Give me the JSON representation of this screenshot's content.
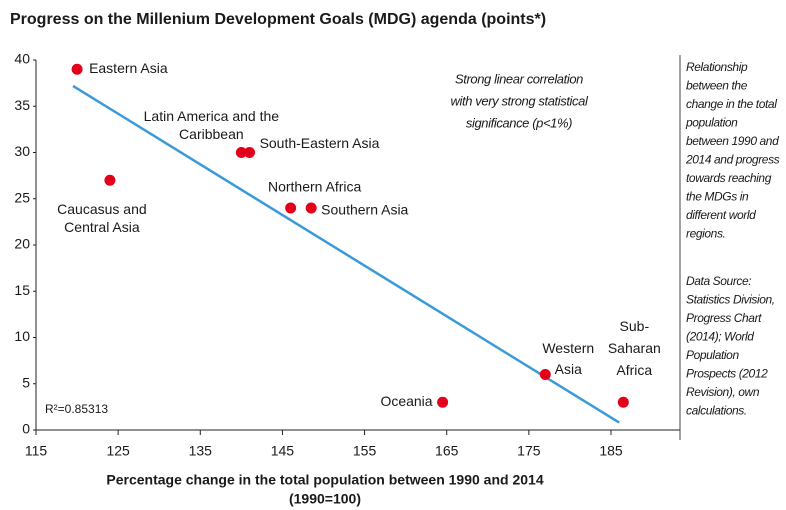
{
  "chart_data": {
    "type": "scatter",
    "title": "Progress on the Millenium Development Goals (MDG) agenda (points*)",
    "x_label": [
      "Percentage change in the total population between 1990 and 2014",
      "(1990=100)"
    ],
    "labels": [
      [
        "Eastern Asia"
      ],
      [
        "Latin America and the",
        "Caribbean"
      ],
      [
        "South-Eastern Asia"
      ],
      [
        "Caucasus and",
        "Central Asia"
      ],
      [
        "Northern Africa"
      ],
      [
        "Southern Asia"
      ],
      [
        "Oceania"
      ],
      [
        "Western",
        "Asia"
      ],
      [
        "Sub-",
        "Saharan",
        "Africa"
      ]
    ],
    "x": [
      120,
      140,
      141,
      124,
      146,
      148.5,
      164.5,
      177,
      186.5
    ],
    "values": [
      39,
      30,
      30,
      27,
      24,
      24,
      3,
      6,
      3
    ],
    "color": "#e2001a",
    "trendline": {
      "x": [
        119.5,
        186
      ],
      "y": [
        37.2,
        0.8
      ],
      "color": "#3b9ad9"
    },
    "r_squared_label": "R²=0.85313",
    "annotation": [
      "Strong linear correlation",
      "with very strong statistical",
      "significance (p<1%)"
    ],
    "side_note": [
      [
        "Relationship",
        "between the",
        "change in the total",
        "population",
        "between 1990 and",
        "2014 and progress",
        "towards reaching",
        "the MDGs in",
        "different world",
        "regions."
      ],
      [
        "Data Source:",
        "Statistics Division,",
        "Progress Chart",
        "(2014); World",
        "Population",
        "Prospects (2012",
        "Revision), own",
        "calculations."
      ]
    ],
    "xlim": [
      115,
      193.4
    ],
    "xticks": [
      115,
      125,
      135,
      145,
      155,
      165,
      175,
      185
    ],
    "ylim": [
      0,
      40
    ],
    "yticks": [
      0,
      5,
      10,
      15,
      20,
      25,
      30,
      35,
      40
    ],
    "grid": false
  }
}
